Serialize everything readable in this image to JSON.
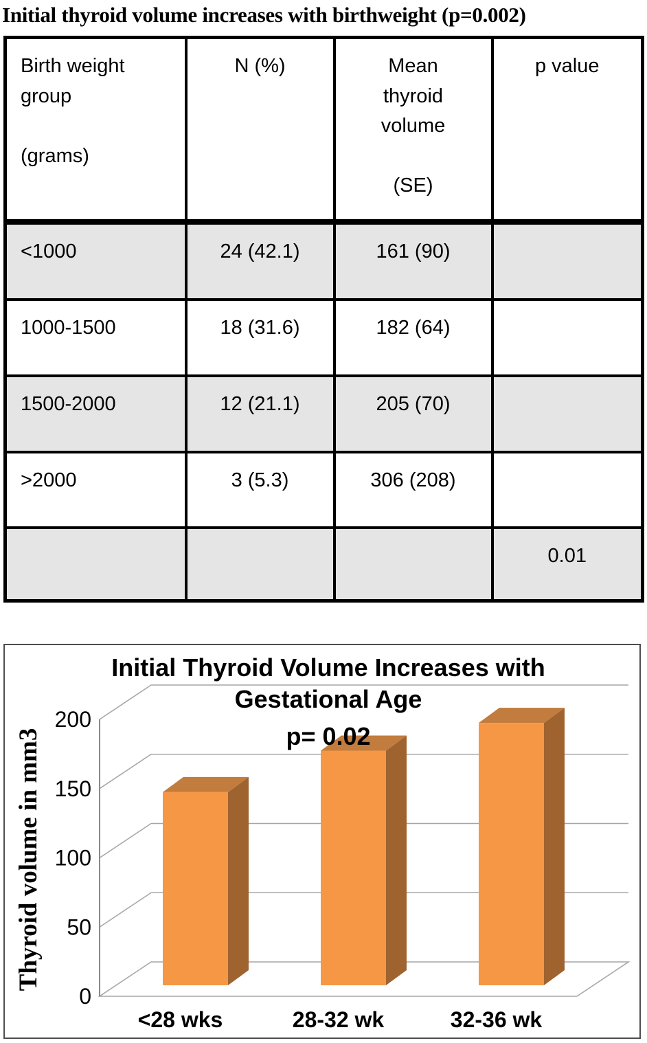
{
  "heading": "Initial thyroid volume increases with birthweight (p=0.002)",
  "table": {
    "columns": [
      {
        "label": "Birth weight\ngroup\n\n(grams)",
        "align": "left"
      },
      {
        "label": "N (%)",
        "align": "center"
      },
      {
        "label": "Mean\nthyroid\nvolume\n\n(SE)",
        "align": "center"
      },
      {
        "label": "p value",
        "align": "center"
      }
    ],
    "rows": [
      {
        "shaded": true,
        "cells": [
          "<1000",
          "24 (42.1)",
          "161 (90)",
          ""
        ]
      },
      {
        "shaded": false,
        "cells": [
          "1000-1500",
          "18 (31.6)",
          "182 (64)",
          ""
        ]
      },
      {
        "shaded": true,
        "cells": [
          "1500-2000",
          "12 (21.1)",
          "205 (70)",
          ""
        ]
      },
      {
        "shaded": false,
        "cells": [
          ">2000",
          "3 (5.3)",
          "306 (208)",
          ""
        ]
      },
      {
        "shaded": true,
        "cells": [
          "",
          "",
          "",
          "0.01"
        ]
      }
    ]
  },
  "chart_data": {
    "type": "bar",
    "style": "3d",
    "title_lines": [
      "Initial Thyroid Volume Increases with",
      "Gestational Age",
      "p= 0.02"
    ],
    "categories": [
      "<28 wks",
      "28-32 wk",
      "32-36 wk"
    ],
    "values": [
      140,
      170,
      190
    ],
    "ylabel": "Thyroid  volume in mm3",
    "ylim": [
      0,
      200
    ],
    "yticks": [
      0,
      50,
      100,
      150,
      200
    ],
    "grid": true,
    "legend": "none",
    "colors": {
      "bar_front": "#F59745",
      "bar_top": "#C17C3E",
      "bar_side": "#9F6330",
      "gridline": "#A6A6A6",
      "axis": "#898989",
      "chart_border": "#4D4D4D"
    }
  }
}
